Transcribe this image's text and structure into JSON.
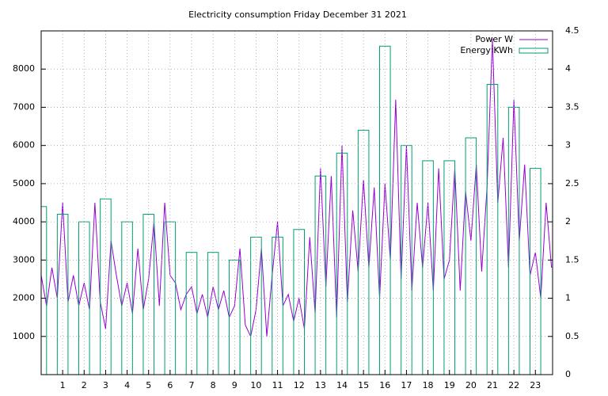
{
  "chart_data": {
    "type": "line",
    "title": "Electricity consumption Friday December 31 2021",
    "xlim": [
      0,
      23.8
    ],
    "xticks": [
      1,
      2,
      3,
      4,
      5,
      6,
      7,
      8,
      9,
      10,
      11,
      12,
      13,
      14,
      15,
      16,
      17,
      18,
      19,
      20,
      21,
      22,
      23
    ],
    "ylim": [
      0,
      9000
    ],
    "yticks": [
      1000,
      2000,
      3000,
      4000,
      5000,
      6000,
      7000,
      8000
    ],
    "y2lim": [
      0,
      4.5
    ],
    "y2ticks": [
      0,
      0.5,
      1,
      1.5,
      2,
      2.5,
      3,
      3.5,
      4,
      4.5
    ],
    "grid": true,
    "legend": "top-right",
    "series": [
      {
        "name": "Power W",
        "color": "#9400d3",
        "type": "line",
        "x": [
          0,
          0.25,
          0.5,
          0.75,
          1,
          1.25,
          1.5,
          1.75,
          2,
          2.25,
          2.5,
          2.75,
          3,
          3.25,
          3.5,
          3.75,
          4,
          4.25,
          4.5,
          4.75,
          5,
          5.25,
          5.5,
          5.75,
          6,
          6.25,
          6.5,
          6.75,
          7,
          7.25,
          7.5,
          7.75,
          8,
          8.25,
          8.5,
          8.75,
          9,
          9.25,
          9.5,
          9.75,
          10,
          10.25,
          10.5,
          10.75,
          11,
          11.25,
          11.5,
          11.75,
          12,
          12.25,
          12.5,
          12.75,
          13,
          13.25,
          13.5,
          13.75,
          14,
          14.25,
          14.5,
          14.75,
          15,
          15.25,
          15.5,
          15.75,
          16,
          16.25,
          16.5,
          16.75,
          17,
          17.25,
          17.5,
          17.75,
          18,
          18.25,
          18.5,
          18.75,
          19,
          19.25,
          19.5,
          19.75,
          20,
          20.25,
          20.5,
          20.75,
          21,
          21.25,
          21.5,
          21.75,
          22,
          22.25,
          22.5,
          22.75,
          23,
          23.25,
          23.5,
          23.75
        ],
        "values": [
          2600,
          1800,
          2800,
          2000,
          4500,
          1900,
          2600,
          1800,
          2400,
          1700,
          4500,
          1900,
          1200,
          3500,
          2600,
          1800,
          2400,
          1600,
          3300,
          1700,
          2500,
          4000,
          1800,
          4500,
          2600,
          2400,
          1700,
          2100,
          2300,
          1600,
          2100,
          1500,
          2300,
          1700,
          2200,
          1500,
          1800,
          3300,
          1300,
          1000,
          1700,
          3300,
          1000,
          2600,
          4000,
          1800,
          2100,
          1400,
          2000,
          1200,
          3600,
          1600,
          5400,
          2300,
          5200,
          1500,
          6000,
          1900,
          4300,
          2700,
          5100,
          2800,
          4900,
          2000,
          5000,
          3000,
          7200,
          2500,
          6000,
          2200,
          4500,
          2800,
          4500,
          2200,
          5400,
          2500,
          3000,
          5400,
          2200,
          4800,
          3500,
          5500,
          2700,
          4900,
          8800,
          4500,
          6200,
          2800,
          7200,
          3500,
          5500,
          2600,
          3200,
          2000,
          4500,
          2800
        ]
      },
      {
        "name": "Energy KWh",
        "color": "#009e73",
        "type": "boxes",
        "axis": "y2",
        "x": [
          0,
          1,
          2,
          3,
          4,
          5,
          6,
          7,
          8,
          9,
          10,
          11,
          12,
          13,
          14,
          15,
          16,
          17,
          18,
          19,
          20,
          21,
          22,
          23
        ],
        "values": [
          2.2,
          2.1,
          2.0,
          2.3,
          2.0,
          2.1,
          2.0,
          1.6,
          1.6,
          1.5,
          1.8,
          1.8,
          1.9,
          2.6,
          2.9,
          3.2,
          4.3,
          3.0,
          2.8,
          2.8,
          3.1,
          3.8,
          3.5,
          2.7
        ]
      }
    ]
  }
}
